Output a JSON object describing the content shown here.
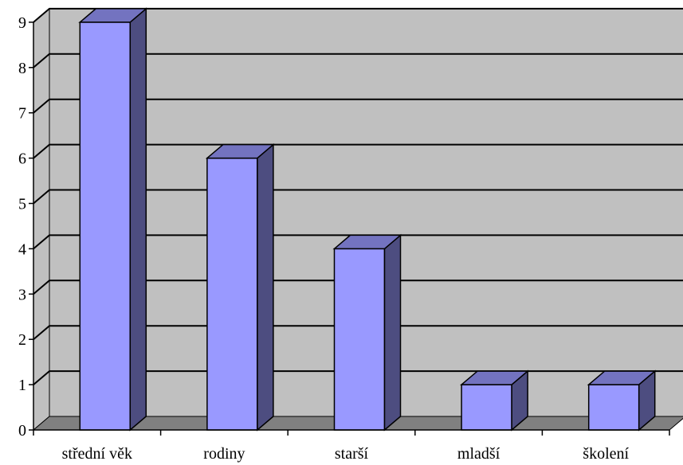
{
  "chart_data": {
    "type": "bar",
    "style": "3d-column",
    "categories": [
      "střední věk",
      "rodiny",
      "starší",
      "mladší",
      "školení"
    ],
    "values": [
      9,
      6,
      4,
      1,
      1
    ],
    "ylim": [
      0,
      9
    ],
    "yticks": [
      "0",
      "1",
      "2",
      "3",
      "4",
      "5",
      "6",
      "7",
      "8",
      "9"
    ],
    "title": "",
    "xlabel": "",
    "ylabel": "",
    "grid": true,
    "legend": "none"
  },
  "colors": {
    "wall": "#c0c0c0",
    "floor": "#808080",
    "bar_front": "#9999ff",
    "bar_top": "#7373c0",
    "bar_side": "#4d4d80",
    "grid": "#000000"
  }
}
